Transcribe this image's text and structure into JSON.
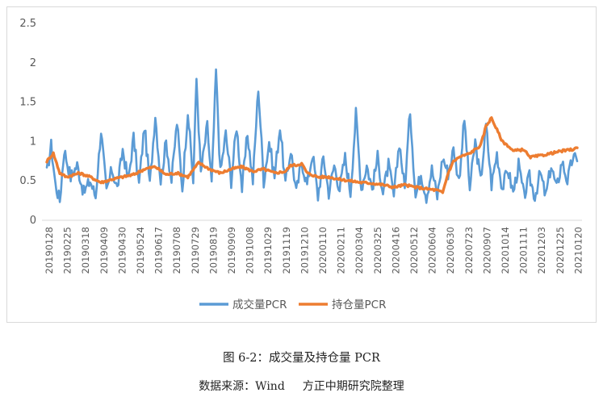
{
  "chart_data": {
    "type": "line",
    "y_ticks": [
      "0",
      "0.5",
      "1",
      "1.5",
      "2",
      "2.5"
    ],
    "ylim": [
      0,
      2.5
    ],
    "grid": false,
    "legend_position": "bottom",
    "x_tick_labels": [
      "20190128",
      "20190225",
      "20190318",
      "20190409",
      "20190430",
      "20190524",
      "20190617",
      "20190708",
      "20190729",
      "20190819",
      "20190909",
      "20191008",
      "20191029",
      "20191119",
      "20191210",
      "20200110",
      "20200211",
      "20200304",
      "20200325",
      "20200416",
      "20200512",
      "20200604",
      "20200630",
      "20200723",
      "20200907",
      "20201014",
      "20201111",
      "20201203",
      "20201225",
      "20210120"
    ],
    "series": [
      {
        "name": "成交量PCR",
        "color": "#5b9bd5",
        "anchors": [
          [
            0,
            0.6
          ],
          [
            4,
            0.95
          ],
          [
            8,
            0.45
          ],
          [
            12,
            0.25
          ],
          [
            16,
            0.9
          ],
          [
            22,
            0.55
          ],
          [
            28,
            0.7
          ],
          [
            34,
            0.35
          ],
          [
            40,
            0.5
          ],
          [
            45,
            0.3
          ],
          [
            50,
            1.15
          ],
          [
            55,
            0.35
          ],
          [
            60,
            0.65
          ],
          [
            65,
            0.4
          ],
          [
            70,
            0.9
          ],
          [
            75,
            0.5
          ],
          [
            80,
            1.05
          ],
          [
            85,
            0.45
          ],
          [
            90,
            1.2
          ],
          [
            95,
            0.45
          ],
          [
            100,
            1.35
          ],
          [
            105,
            0.5
          ],
          [
            110,
            1.0
          ],
          [
            115,
            0.5
          ],
          [
            120,
            1.25
          ],
          [
            125,
            0.4
          ],
          [
            130,
            1.4
          ],
          [
            135,
            0.5
          ],
          [
            138,
            1.8
          ],
          [
            142,
            0.6
          ],
          [
            148,
            1.2
          ],
          [
            152,
            0.45
          ],
          [
            156,
            1.9
          ],
          [
            160,
            0.6
          ],
          [
            165,
            1.1
          ],
          [
            170,
            0.5
          ],
          [
            175,
            1.2
          ],
          [
            180,
            0.4
          ],
          [
            185,
            1.1
          ],
          [
            190,
            0.5
          ],
          [
            195,
            1.7
          ],
          [
            200,
            0.5
          ],
          [
            205,
            1.0
          ],
          [
            210,
            0.55
          ],
          [
            215,
            1.2
          ],
          [
            220,
            0.45
          ],
          [
            225,
            0.9
          ],
          [
            230,
            0.35
          ],
          [
            235,
            0.75
          ],
          [
            240,
            0.45
          ],
          [
            245,
            0.85
          ],
          [
            250,
            0.3
          ],
          [
            255,
            0.8
          ],
          [
            260,
            0.35
          ],
          [
            265,
            0.7
          ],
          [
            270,
            0.4
          ],
          [
            275,
            0.8
          ],
          [
            280,
            0.35
          ],
          [
            285,
            1.35
          ],
          [
            290,
            0.4
          ],
          [
            295,
            0.7
          ],
          [
            300,
            0.4
          ],
          [
            305,
            0.8
          ],
          [
            310,
            0.35
          ],
          [
            315,
            0.7
          ],
          [
            320,
            0.3
          ],
          [
            325,
            1.0
          ],
          [
            330,
            0.4
          ],
          [
            335,
            1.4
          ],
          [
            340,
            0.3
          ],
          [
            345,
            0.6
          ],
          [
            350,
            0.3
          ],
          [
            355,
            0.65
          ],
          [
            360,
            0.3
          ],
          [
            365,
            0.8
          ],
          [
            370,
            0.6
          ],
          [
            375,
            0.9
          ],
          [
            380,
            0.5
          ],
          [
            385,
            1.28
          ],
          [
            390,
            0.4
          ],
          [
            395,
            1.0
          ],
          [
            400,
            0.5
          ],
          [
            405,
            1.2
          ],
          [
            410,
            0.45
          ],
          [
            415,
            0.85
          ],
          [
            420,
            0.4
          ],
          [
            425,
            0.65
          ],
          [
            430,
            0.35
          ],
          [
            435,
            0.7
          ],
          [
            440,
            0.3
          ],
          [
            445,
            0.55
          ],
          [
            450,
            0.3
          ],
          [
            455,
            0.6
          ],
          [
            460,
            0.3
          ],
          [
            465,
            0.7
          ],
          [
            470,
            0.4
          ],
          [
            475,
            0.75
          ],
          [
            480,
            0.5
          ],
          [
            485,
            0.8
          ],
          [
            489,
            0.75
          ]
        ]
      },
      {
        "name": "持仓量PCR",
        "color": "#ed7d31",
        "anchors": [
          [
            0,
            0.75
          ],
          [
            6,
            0.85
          ],
          [
            12,
            0.6
          ],
          [
            18,
            0.55
          ],
          [
            30,
            0.6
          ],
          [
            40,
            0.55
          ],
          [
            50,
            0.48
          ],
          [
            60,
            0.52
          ],
          [
            70,
            0.55
          ],
          [
            80,
            0.58
          ],
          [
            90,
            0.65
          ],
          [
            100,
            0.68
          ],
          [
            110,
            0.58
          ],
          [
            120,
            0.6
          ],
          [
            130,
            0.55
          ],
          [
            140,
            0.73
          ],
          [
            150,
            0.65
          ],
          [
            160,
            0.6
          ],
          [
            170,
            0.65
          ],
          [
            180,
            0.68
          ],
          [
            190,
            0.62
          ],
          [
            200,
            0.65
          ],
          [
            210,
            0.6
          ],
          [
            220,
            0.62
          ],
          [
            225,
            0.7
          ],
          [
            230,
            0.7
          ],
          [
            235,
            0.72
          ],
          [
            240,
            0.6
          ],
          [
            250,
            0.55
          ],
          [
            260,
            0.55
          ],
          [
            270,
            0.52
          ],
          [
            280,
            0.5
          ],
          [
            290,
            0.48
          ],
          [
            300,
            0.47
          ],
          [
            310,
            0.45
          ],
          [
            320,
            0.42
          ],
          [
            330,
            0.45
          ],
          [
            340,
            0.42
          ],
          [
            350,
            0.4
          ],
          [
            360,
            0.38
          ],
          [
            365,
            0.35
          ],
          [
            370,
            0.6
          ],
          [
            375,
            0.75
          ],
          [
            380,
            0.8
          ],
          [
            390,
            0.85
          ],
          [
            400,
            0.95
          ],
          [
            405,
            1.2
          ],
          [
            410,
            1.3
          ],
          [
            415,
            1.15
          ],
          [
            420,
            1.0
          ],
          [
            425,
            0.95
          ],
          [
            430,
            0.88
          ],
          [
            440,
            0.9
          ],
          [
            445,
            0.8
          ],
          [
            455,
            0.82
          ],
          [
            465,
            0.85
          ],
          [
            475,
            0.88
          ],
          [
            485,
            0.9
          ],
          [
            489,
            0.92
          ]
        ]
      }
    ]
  },
  "caption": {
    "title": "图 6-2：成交量及持仓量 PCR",
    "source_label": "数据来源：Wind",
    "source_org": "方正中期研究院整理"
  }
}
